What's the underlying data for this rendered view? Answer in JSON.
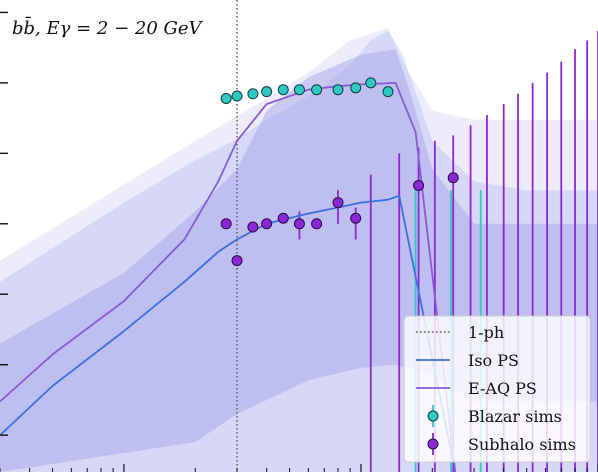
{
  "chart_data": {
    "type": "line",
    "annotation": "bb̄, Eγ = 2 − 20 GeV",
    "x_axis": {
      "scale": "log",
      "domain": [
        3,
        1000
      ]
    },
    "y_axis": {
      "scale": "log",
      "domain": [
        3e-05,
        150
      ]
    },
    "reference_line": {
      "name": "1-ph",
      "x": 30
    },
    "bands": [
      {
        "id": "outer-light",
        "fill": "#b9b9f2",
        "opacity": 0.28,
        "upper": [
          [
            3,
            0.03
          ],
          [
            20,
            1.5
          ],
          [
            40,
            6
          ],
          [
            60,
            14
          ],
          [
            90,
            40
          ],
          [
            130,
            60
          ],
          [
            150,
            20
          ],
          [
            200,
            4
          ],
          [
            300,
            3
          ],
          [
            1000,
            3
          ]
        ],
        "lower": [
          [
            3,
            3e-05
          ],
          [
            1000,
            3e-05
          ]
        ]
      },
      {
        "id": "outer-2sigma",
        "fill": "#b9b9f2",
        "opacity": 0.4,
        "upper": [
          [
            3,
            0.015
          ],
          [
            10,
            0.2
          ],
          [
            20,
            0.8
          ],
          [
            30,
            1.6
          ],
          [
            40,
            3
          ],
          [
            50,
            4.5
          ],
          [
            70,
            9
          ],
          [
            90,
            18
          ],
          [
            110,
            40
          ],
          [
            130,
            55
          ],
          [
            150,
            25
          ],
          [
            200,
            1.5
          ],
          [
            300,
            0.4
          ],
          [
            500,
            0.3
          ],
          [
            1000,
            0.3
          ]
        ],
        "lower": [
          [
            3,
            3e-05
          ],
          [
            1000,
            3e-05
          ]
        ]
      },
      {
        "id": "inner-1sigma",
        "fill": "#9f9fe6",
        "opacity": 0.45,
        "upper": [
          [
            3,
            0.002
          ],
          [
            10,
            0.02
          ],
          [
            20,
            0.15
          ],
          [
            30,
            0.6
          ],
          [
            40,
            4
          ],
          [
            60,
            12
          ],
          [
            100,
            25
          ],
          [
            140,
            30
          ],
          [
            160,
            8
          ],
          [
            200,
            0.6
          ],
          [
            300,
            0.1
          ],
          [
            1000,
            0.1
          ]
        ],
        "lower": [
          [
            3,
            3e-05
          ],
          [
            20,
            8e-05
          ],
          [
            30,
            0.0002
          ],
          [
            60,
            0.0006
          ],
          [
            100,
            0.0009
          ],
          [
            140,
            0.001
          ],
          [
            200,
            0.0007
          ],
          [
            300,
            0.0003
          ],
          [
            1000,
            0.0003
          ]
        ]
      }
    ],
    "series": [
      {
        "name": "Iso PS",
        "kind": "line",
        "color": "#3d6fe0",
        "points": [
          [
            3,
            0.0001
          ],
          [
            5,
            0.0005
          ],
          [
            10,
            0.003
          ],
          [
            18,
            0.015
          ],
          [
            25,
            0.04
          ],
          [
            30,
            0.06
          ],
          [
            40,
            0.1
          ],
          [
            60,
            0.14
          ],
          [
            80,
            0.17
          ],
          [
            100,
            0.2
          ],
          [
            130,
            0.22
          ],
          [
            145,
            0.25
          ],
          [
            250,
            3e-05
          ]
        ]
      },
      {
        "name": "E-AQ PS",
        "kind": "line",
        "color": "#8a5ad6",
        "points": [
          [
            3,
            0.0003
          ],
          [
            5,
            0.0014
          ],
          [
            10,
            0.008
          ],
          [
            18,
            0.06
          ],
          [
            25,
            0.4
          ],
          [
            30,
            1.5
          ],
          [
            40,
            5
          ],
          [
            60,
            8
          ],
          [
            80,
            9
          ],
          [
            100,
            9.5
          ],
          [
            140,
            10
          ],
          [
            170,
            2
          ],
          [
            250,
            3e-05
          ]
        ]
      },
      {
        "name": "Blazar sims",
        "kind": "points",
        "color": "#2ec9c2",
        "edge": "#123c3c",
        "points": [
          [
            27,
            6
          ],
          [
            30,
            6.5
          ],
          [
            35,
            7
          ],
          [
            40,
            7.5
          ],
          [
            47,
            8
          ],
          [
            55,
            8
          ],
          [
            65,
            8
          ],
          [
            80,
            8
          ],
          [
            95,
            8.5
          ],
          [
            110,
            10
          ],
          [
            130,
            7.5
          ]
        ],
        "errors": [
          [
            170,
            0.3,
            3e-05
          ],
          [
            240,
            0.3,
            3e-05
          ],
          [
            320,
            0.3,
            3e-05
          ]
        ]
      },
      {
        "name": "Subhalo sims",
        "kind": "points",
        "color": "#8a28d6",
        "edge": "#2a0a46",
        "points": [
          [
            27,
            0.1
          ],
          [
            30,
            0.03
          ],
          [
            35,
            0.09
          ],
          [
            40,
            0.1
          ],
          [
            47,
            0.12
          ],
          [
            55,
            0.1
          ],
          [
            65,
            0.1
          ],
          [
            80,
            0.2
          ],
          [
            95,
            0.12
          ],
          [
            175,
            0.35
          ],
          [
            245,
            0.45
          ]
        ],
        "errors": [
          [
            55,
            0.15,
            0.06
          ],
          [
            80,
            0.3,
            0.1
          ],
          [
            95,
            0.17,
            0.06
          ],
          [
            110,
            0.5,
            3e-05
          ],
          [
            145,
            1,
            3e-05
          ],
          [
            175,
            1.2,
            3e-05
          ],
          [
            205,
            1.5,
            3e-05
          ],
          [
            245,
            1.8,
            3e-05
          ],
          [
            290,
            2.5,
            3e-05
          ],
          [
            340,
            3.5,
            3e-05
          ],
          [
            400,
            5,
            3e-05
          ],
          [
            460,
            7,
            3e-05
          ],
          [
            530,
            10,
            3e-05
          ],
          [
            610,
            14,
            3e-05
          ],
          [
            700,
            20,
            3e-05
          ],
          [
            800,
            30,
            3e-05
          ],
          [
            900,
            40,
            3e-05
          ],
          [
            1000,
            55,
            3e-05
          ]
        ]
      }
    ],
    "legend": {
      "position": "bottom-right",
      "entries": [
        {
          "label": "1-ph",
          "kind": "dotted",
          "color": "#555555"
        },
        {
          "label": "Iso PS",
          "kind": "line",
          "color": "#3d6fe0"
        },
        {
          "label": "E-AQ PS",
          "kind": "line",
          "color": "#8a5ad6"
        },
        {
          "label": "Blazar sims",
          "kind": "marker",
          "color": "#2ec9c2",
          "edge": "#123c3c"
        },
        {
          "label": "Subhalo sims",
          "kind": "marker",
          "color": "#8a28d6",
          "edge": "#2a0a46"
        }
      ]
    }
  }
}
